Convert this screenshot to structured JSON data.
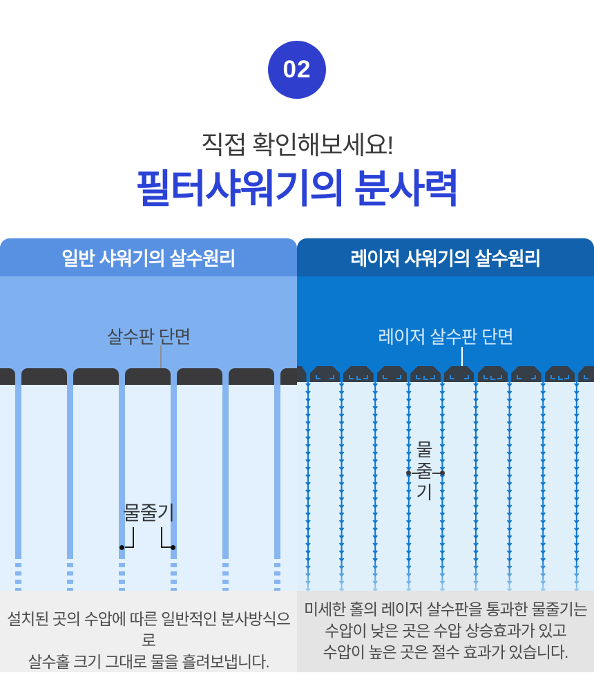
{
  "badge": {
    "number": "02",
    "bg": "#2F3ECC"
  },
  "heading": {
    "subtitle": "직접 확인해보세요!",
    "subtitle_color": "#3C3C3C",
    "title": "필터샤워기의 분사력",
    "title_color": "#2B42D6"
  },
  "comparison": {
    "left": {
      "header": "일반 샤워기의 살수원리",
      "header_bg": "#5890E2",
      "panel_bg": "#7FB1F0",
      "zone_bg": "#E2F1FD",
      "plate_color": "#3A3A3C",
      "stream_color": "#86B5F1",
      "stream_count": 6,
      "plate_label": "살수판 단면",
      "stream_label": "물줄기",
      "caption_bg": "#EFEFEF",
      "caption_lines": [
        "설치된 곳의 수압에 따른 일반적인 분사방식으로",
        "살수홀 크기 그대로 물을 흘려보냅니다."
      ]
    },
    "right": {
      "header": "레이저 샤워기의 살수원리",
      "header_bg": "#1161AC",
      "panel_bg": "#0B78D0",
      "zone_bg": "#DFF0FB",
      "plate_color": "#363E48",
      "stream_color": "#0B76CE",
      "splash_color_dark_zone": "#2189DD",
      "splash_color_light_zone": "#3D9BE0",
      "stream_count": 9,
      "plate_label": "레이저 살수판 단면",
      "stream_label": "물줄기",
      "caption_bg": "#E4E4E4",
      "caption_lines": [
        "미세한 홀의 레이저 살수판을 통과한 물줄기는",
        "수압이 낮은 곳은 수압 상승효과가 있고",
        "수압이 높은 곳은 절수 효과가 있습니다."
      ]
    }
  }
}
